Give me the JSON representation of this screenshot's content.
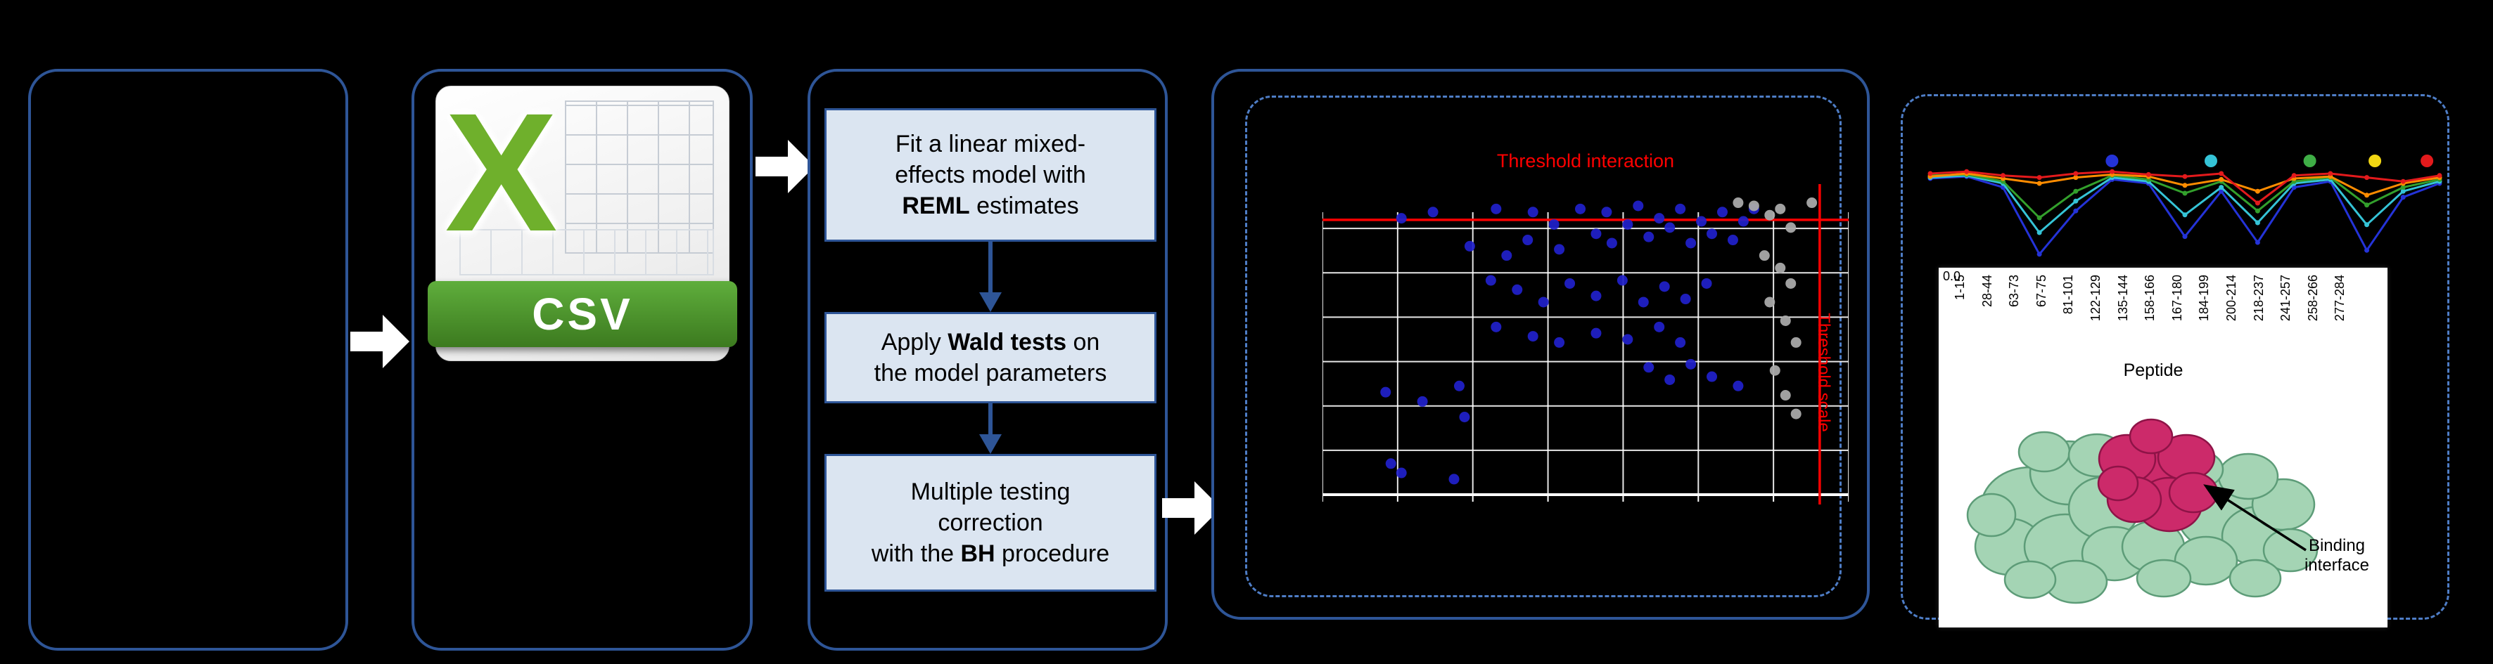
{
  "flow": {
    "step1": {
      "l1": "Fit a linear mixed-",
      "l2": "effects model with",
      "bold": "REML",
      "tail": " estimates"
    },
    "step2": {
      "pre": "Apply ",
      "bold": "Wald tests",
      "post": " on",
      "l2": "the model parameters"
    },
    "step3": {
      "l1": "Multiple testing",
      "l2": "correction",
      "pre": "with the ",
      "bold": "BH",
      "tail": " procedure"
    }
  },
  "csv": {
    "letter": "X",
    "label": "CSV"
  },
  "scatter": {
    "title": "Threshold interaction",
    "side_label": "Threshold scale",
    "threshold_color": "#ff0000",
    "h_threshold": 0.115,
    "v_threshold": 0.945,
    "grid": {
      "v_divisions": 7,
      "h_divisions": 7
    },
    "point_color_blue": "#2121cc",
    "point_color_gray": "#a9a9a9",
    "points_blue": [
      [
        0.15,
        0.11
      ],
      [
        0.21,
        0.09
      ],
      [
        0.28,
        0.2
      ],
      [
        0.33,
        0.08
      ],
      [
        0.35,
        0.23
      ],
      [
        0.39,
        0.18
      ],
      [
        0.4,
        0.09
      ],
      [
        0.44,
        0.13
      ],
      [
        0.45,
        0.21
      ],
      [
        0.49,
        0.08
      ],
      [
        0.52,
        0.16
      ],
      [
        0.54,
        0.09
      ],
      [
        0.55,
        0.19
      ],
      [
        0.58,
        0.13
      ],
      [
        0.6,
        0.07
      ],
      [
        0.62,
        0.17
      ],
      [
        0.64,
        0.11
      ],
      [
        0.66,
        0.14
      ],
      [
        0.68,
        0.08
      ],
      [
        0.7,
        0.19
      ],
      [
        0.72,
        0.12
      ],
      [
        0.74,
        0.16
      ],
      [
        0.76,
        0.09
      ],
      [
        0.78,
        0.18
      ],
      [
        0.8,
        0.12
      ],
      [
        0.82,
        0.08
      ],
      [
        0.32,
        0.31
      ],
      [
        0.37,
        0.34
      ],
      [
        0.42,
        0.38
      ],
      [
        0.47,
        0.32
      ],
      [
        0.52,
        0.36
      ],
      [
        0.57,
        0.31
      ],
      [
        0.61,
        0.38
      ],
      [
        0.65,
        0.33
      ],
      [
        0.69,
        0.37
      ],
      [
        0.73,
        0.32
      ],
      [
        0.33,
        0.46
      ],
      [
        0.4,
        0.49
      ],
      [
        0.45,
        0.51
      ],
      [
        0.52,
        0.48
      ],
      [
        0.58,
        0.5
      ],
      [
        0.64,
        0.46
      ],
      [
        0.68,
        0.51
      ],
      [
        0.12,
        0.67
      ],
      [
        0.19,
        0.7
      ],
      [
        0.26,
        0.65
      ],
      [
        0.13,
        0.9
      ],
      [
        0.15,
        0.93
      ],
      [
        0.25,
        0.95
      ],
      [
        0.27,
        0.75
      ],
      [
        0.62,
        0.59
      ],
      [
        0.66,
        0.63
      ],
      [
        0.7,
        0.58
      ],
      [
        0.74,
        0.62
      ],
      [
        0.79,
        0.65
      ]
    ],
    "points_gray": [
      [
        0.79,
        0.06
      ],
      [
        0.82,
        0.07
      ],
      [
        0.85,
        0.1
      ],
      [
        0.87,
        0.08
      ],
      [
        0.89,
        0.14
      ],
      [
        0.93,
        0.06
      ],
      [
        0.84,
        0.23
      ],
      [
        0.87,
        0.27
      ],
      [
        0.89,
        0.32
      ],
      [
        0.85,
        0.38
      ],
      [
        0.88,
        0.44
      ],
      [
        0.9,
        0.51
      ],
      [
        0.86,
        0.6
      ],
      [
        0.88,
        0.68
      ],
      [
        0.9,
        0.74
      ]
    ]
  },
  "profile": {
    "series": [
      {
        "name": "blue",
        "color": "#2433d8",
        "values": [
          0.85,
          0.87,
          0.76,
          0.08,
          0.52,
          0.84,
          0.8,
          0.26,
          0.72,
          0.2,
          0.76,
          0.82,
          0.12,
          0.66,
          0.8
        ]
      },
      {
        "name": "cyan",
        "color": "#35c4d7",
        "values": [
          0.86,
          0.88,
          0.8,
          0.3,
          0.62,
          0.86,
          0.82,
          0.48,
          0.76,
          0.4,
          0.8,
          0.84,
          0.38,
          0.72,
          0.82
        ]
      },
      {
        "name": "green",
        "color": "#33a02c",
        "values": [
          0.88,
          0.89,
          0.82,
          0.45,
          0.72,
          0.88,
          0.84,
          0.7,
          0.82,
          0.52,
          0.82,
          0.86,
          0.58,
          0.76,
          0.84
        ]
      },
      {
        "name": "orange",
        "color": "#ff8c00",
        "values": [
          0.87,
          0.9,
          0.85,
          0.8,
          0.86,
          0.89,
          0.87,
          0.78,
          0.84,
          0.72,
          0.85,
          0.87,
          0.68,
          0.8,
          0.86
        ]
      },
      {
        "name": "red",
        "color": "#e31a1c",
        "values": [
          0.9,
          0.92,
          0.88,
          0.86,
          0.9,
          0.92,
          0.89,
          0.87,
          0.9,
          0.6,
          0.88,
          0.9,
          0.86,
          0.82,
          0.88
        ]
      }
    ],
    "legend": [
      {
        "color": "#2433d8",
        "x": 0.36
      },
      {
        "color": "#35c4d7",
        "x": 0.55
      },
      {
        "color": "#3fae46",
        "x": 0.74
      },
      {
        "color": "#f2d713",
        "x": 0.865
      },
      {
        "color": "#e31a1c",
        "x": 0.965
      }
    ]
  },
  "peptide": {
    "tick": "0.0",
    "axis_label": "Peptide",
    "labels": [
      "1-15",
      "28-44",
      "63-73",
      "67-75",
      "81-101",
      "122-129",
      "135-144",
      "158-166",
      "167-180",
      "184-199",
      "200-214",
      "218-237",
      "241-257",
      "258-266",
      "277-284"
    ]
  },
  "binding": {
    "l1": "Binding",
    "l2": "interface"
  },
  "colors": {
    "panel_border": "#2e5597",
    "step_fill": "#dbe5f1",
    "dashed_border": "#4e7dc6",
    "threshold": "#ff0000",
    "csv_green": "#5fae3c"
  }
}
